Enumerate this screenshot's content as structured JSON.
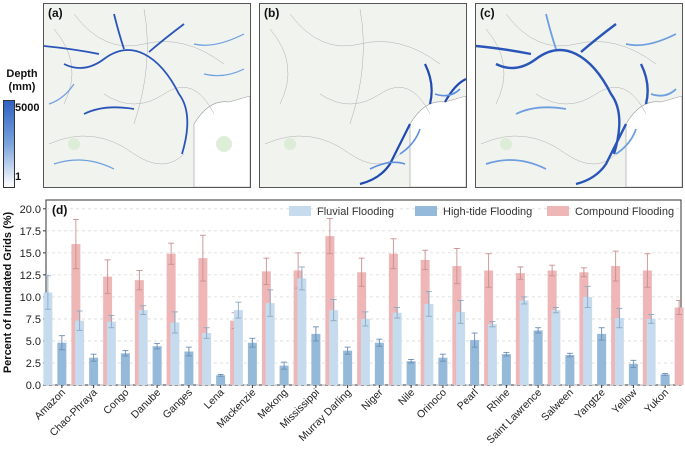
{
  "maps": {
    "panel_a": "(a)",
    "panel_b": "(b)",
    "panel_c": "(c)",
    "legend": {
      "title_line1": "Depth",
      "title_line2": "(mm)",
      "max_label": "5000",
      "min_label": "1"
    }
  },
  "chart_data": {
    "type": "bar",
    "panel_label": "(d)",
    "ylabel": "Percent of Inundated Grids (%)",
    "ylim": [
      0,
      21
    ],
    "yticks": [
      "0.0",
      "2.5",
      "5.0",
      "7.5",
      "10.0",
      "12.5",
      "15.0",
      "17.5",
      "20.0"
    ],
    "categories": [
      "Amazon",
      "Chao-Phraya",
      "Congo",
      "Danube",
      "Ganges",
      "Lena",
      "Mackenzie",
      "Mekong",
      "Mississippi",
      "Murray Darling",
      "Niger",
      "Nile",
      "Orinoco",
      "Pearl",
      "Rhine",
      "Saint Lawrence",
      "Salween",
      "Yangtze",
      "Yellow",
      "Yukon"
    ],
    "series": [
      {
        "name": "Fluvial Flooding",
        "color": "#c6dcee",
        "values": [
          10.5,
          7.3,
          7.2,
          8.5,
          7.1,
          5.9,
          8.5,
          9.3,
          12.1,
          8.5,
          7.5,
          8.2,
          9.2,
          8.3,
          6.9,
          9.6,
          8.5,
          10.0,
          7.6,
          7.5
        ],
        "errors": [
          1.9,
          1.1,
          0.7,
          0.5,
          1.2,
          0.6,
          0.9,
          1.5,
          1.3,
          1.2,
          0.8,
          0.6,
          1.4,
          1.3,
          0.3,
          0.4,
          0.3,
          1.2,
          1.1,
          0.5
        ]
      },
      {
        "name": "High-tide Flooding",
        "color": "#95b9d9",
        "values": [
          4.8,
          3.1,
          3.6,
          4.4,
          3.8,
          1.1,
          4.8,
          2.2,
          5.8,
          3.9,
          4.8,
          2.7,
          3.1,
          5.1,
          3.5,
          6.2,
          3.4,
          5.8,
          2.4,
          1.2
        ],
        "errors": [
          0.8,
          0.4,
          0.3,
          0.3,
          0.5,
          0.1,
          0.5,
          0.4,
          0.8,
          0.4,
          0.4,
          0.2,
          0.4,
          0.8,
          0.2,
          0.3,
          0.2,
          0.7,
          0.4,
          0.1
        ]
      },
      {
        "name": "Compound Flooding",
        "color": "#eeb6b6",
        "values": [
          16.0,
          12.3,
          11.9,
          14.9,
          14.4,
          7.3,
          12.9,
          13.0,
          16.9,
          12.8,
          14.9,
          14.2,
          13.5,
          13.0,
          12.7,
          13.0,
          12.8,
          13.5,
          13.0,
          8.8
        ],
        "errors": [
          2.8,
          1.9,
          1.1,
          1.2,
          2.6,
          0.9,
          1.5,
          2.0,
          2.0,
          1.6,
          1.7,
          1.1,
          2.0,
          1.9,
          0.7,
          0.6,
          0.5,
          1.7,
          1.9,
          0.8
        ]
      }
    ]
  }
}
